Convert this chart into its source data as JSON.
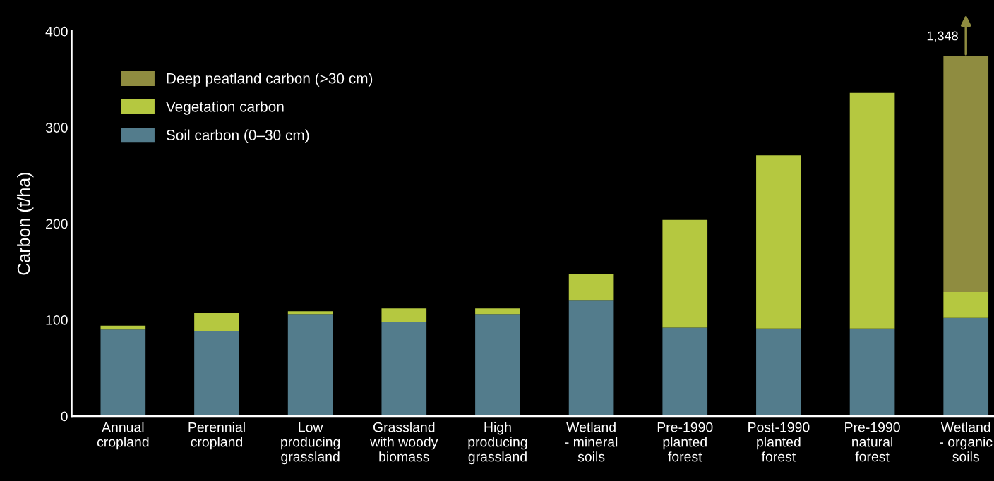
{
  "chart_data": {
    "type": "bar",
    "stacked": true,
    "ylabel": "Carbon (t/ha)",
    "categories": [
      "Annual\ncropland",
      "Perennial\ncropland",
      "Low\nproducing\ngrassland",
      "Grassland\nwith woody\nbiomass",
      "High\nproducing\ngrassland",
      "Wetland\n- mineral\nsoils",
      "Pre-1990\nplanted\nforest",
      "Post-1990\nplanted\nforest",
      "Pre-1990\nnatural\nforest",
      "Wetland\n- organic\nsoils"
    ],
    "series": [
      {
        "name": "Soil carbon (0–30 cm)",
        "color": "#537c8c",
        "values": [
          90,
          88,
          106,
          98,
          106,
          120,
          92,
          91,
          91,
          102
        ]
      },
      {
        "name": "Vegetation carbon",
        "color": "#b5c840",
        "values": [
          4,
          19,
          3,
          14,
          6,
          28,
          112,
          180,
          245,
          27
        ]
      },
      {
        "name": "Deep peatland carbon (>30 cm)",
        "color": "#8f8c40",
        "values": [
          null,
          null,
          null,
          null,
          null,
          null,
          null,
          null,
          null,
          245
        ]
      }
    ],
    "ylim": [
      0,
      400
    ],
    "yticks": [
      0,
      100,
      200,
      300,
      400
    ],
    "grid": false,
    "legend": "top left",
    "annotations": [
      {
        "text": "1,348",
        "x": "Wetland\n- organic\nsoils",
        "y": 374
      }
    ]
  }
}
